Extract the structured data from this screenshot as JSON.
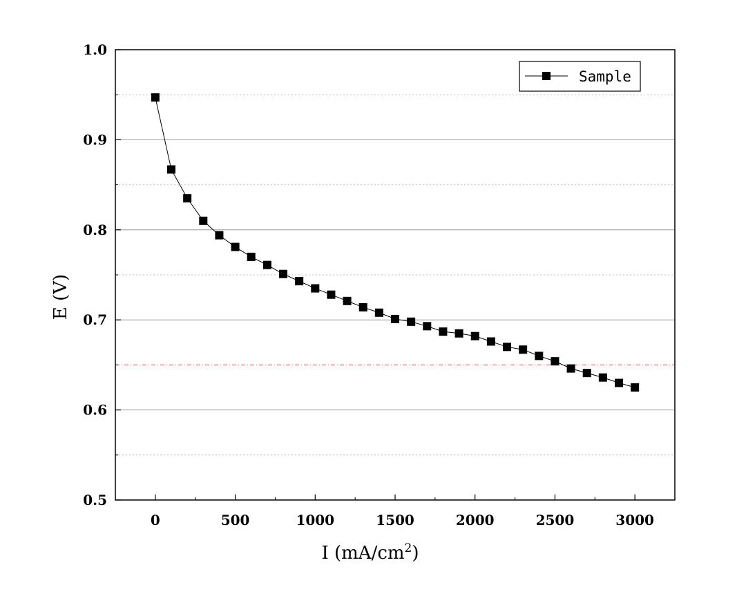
{
  "chart_data": {
    "type": "line",
    "xlabel": "I (mA/cm",
    "xlabel_sup": "2",
    "xlabel_end": ")",
    "ylabel": "E (V)",
    "xlim": [
      -250,
      3250
    ],
    "ylim": [
      0.5,
      1.0
    ],
    "x_ticks": [
      0,
      500,
      1000,
      1500,
      2000,
      2500,
      3000
    ],
    "x_tick_labels": [
      "0",
      "500",
      "1000",
      "1500",
      "2000",
      "2500",
      "3000"
    ],
    "y_ticks": [
      0.5,
      0.6,
      0.7,
      0.8,
      0.9,
      1.0
    ],
    "y_tick_labels": [
      "0.5",
      "0.6",
      "0.7",
      "0.8",
      "0.9",
      "1.0"
    ],
    "grid_major_y": [
      0.6,
      0.7,
      0.8,
      0.9
    ],
    "grid_minor_y": [
      0.55,
      0.75,
      0.85,
      0.95
    ],
    "reference_line": {
      "y": 0.65,
      "color": "#e04040",
      "style": "dash-dot"
    },
    "legend": {
      "position": "top-right",
      "entries": [
        "Sample"
      ]
    },
    "series": [
      {
        "name": "Sample",
        "color": "#000000",
        "marker": "square",
        "x": [
          0,
          100,
          200,
          300,
          400,
          500,
          600,
          700,
          800,
          900,
          1000,
          1100,
          1200,
          1300,
          1400,
          1500,
          1600,
          1700,
          1800,
          1900,
          2000,
          2100,
          2200,
          2300,
          2400,
          2500,
          2600,
          2700,
          2800,
          2900,
          3000
        ],
        "y": [
          0.947,
          0.867,
          0.835,
          0.81,
          0.794,
          0.781,
          0.77,
          0.761,
          0.751,
          0.743,
          0.735,
          0.728,
          0.721,
          0.714,
          0.708,
          0.701,
          0.698,
          0.693,
          0.687,
          0.685,
          0.682,
          0.676,
          0.67,
          0.667,
          0.66,
          0.654,
          0.646,
          0.641,
          0.636,
          0.63,
          0.625
        ]
      }
    ]
  }
}
